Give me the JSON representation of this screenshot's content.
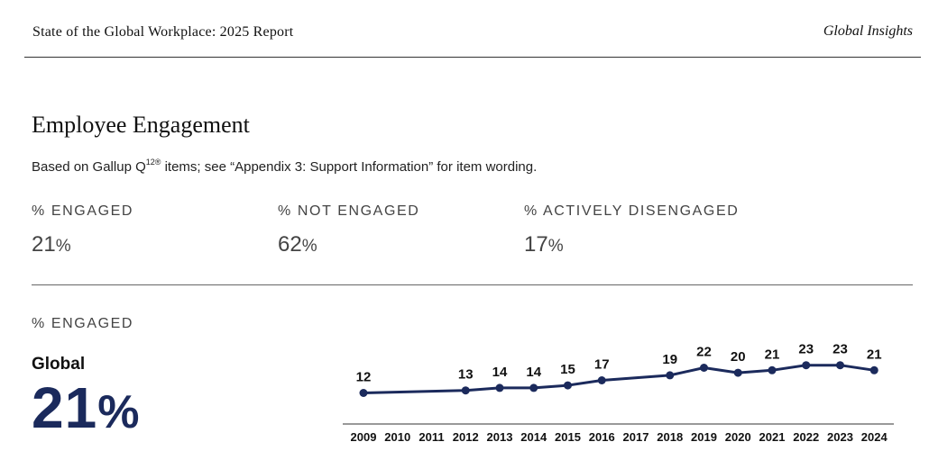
{
  "header": {
    "title": "State of the Global Workplace: 2025 Report",
    "brand": "Global Insights"
  },
  "section": {
    "title": "Employee Engagement",
    "subtitle_prefix": "Based on Gallup Q",
    "subtitle_sup": "12®",
    "subtitle_suffix": " items; see “Appendix 3: Support Information” for item wording."
  },
  "stats": [
    {
      "label": "% ENGAGED",
      "value": "21",
      "unit": "%"
    },
    {
      "label": "% NOT ENGAGED",
      "value": "62",
      "unit": "%"
    },
    {
      "label": "% ACTIVELY DISENGAGED",
      "value": "17",
      "unit": "%"
    }
  ],
  "trend": {
    "label": "% ENGAGED",
    "region": "Global",
    "value": "21",
    "unit": "%"
  },
  "colors": {
    "line": "#1b2a5c",
    "axis": "#333333"
  },
  "chart_data": {
    "type": "line",
    "title": "",
    "xlabel": "",
    "ylabel": "",
    "x": [
      "2009",
      "2010",
      "2011",
      "2012",
      "2013",
      "2014",
      "2015",
      "2016",
      "2017",
      "2018",
      "2019",
      "2020",
      "2021",
      "2022",
      "2023",
      "2024"
    ],
    "points": [
      {
        "x": "2009",
        "y": 12
      },
      {
        "x": "2012",
        "y": 13
      },
      {
        "x": "2013",
        "y": 14
      },
      {
        "x": "2014",
        "y": 14
      },
      {
        "x": "2015",
        "y": 15
      },
      {
        "x": "2016",
        "y": 17
      },
      {
        "x": "2018",
        "y": 19
      },
      {
        "x": "2019",
        "y": 22
      },
      {
        "x": "2020",
        "y": 20
      },
      {
        "x": "2021",
        "y": 21
      },
      {
        "x": "2022",
        "y": 23
      },
      {
        "x": "2023",
        "y": 23
      },
      {
        "x": "2024",
        "y": 21
      }
    ],
    "grid": false,
    "legend": "none"
  }
}
